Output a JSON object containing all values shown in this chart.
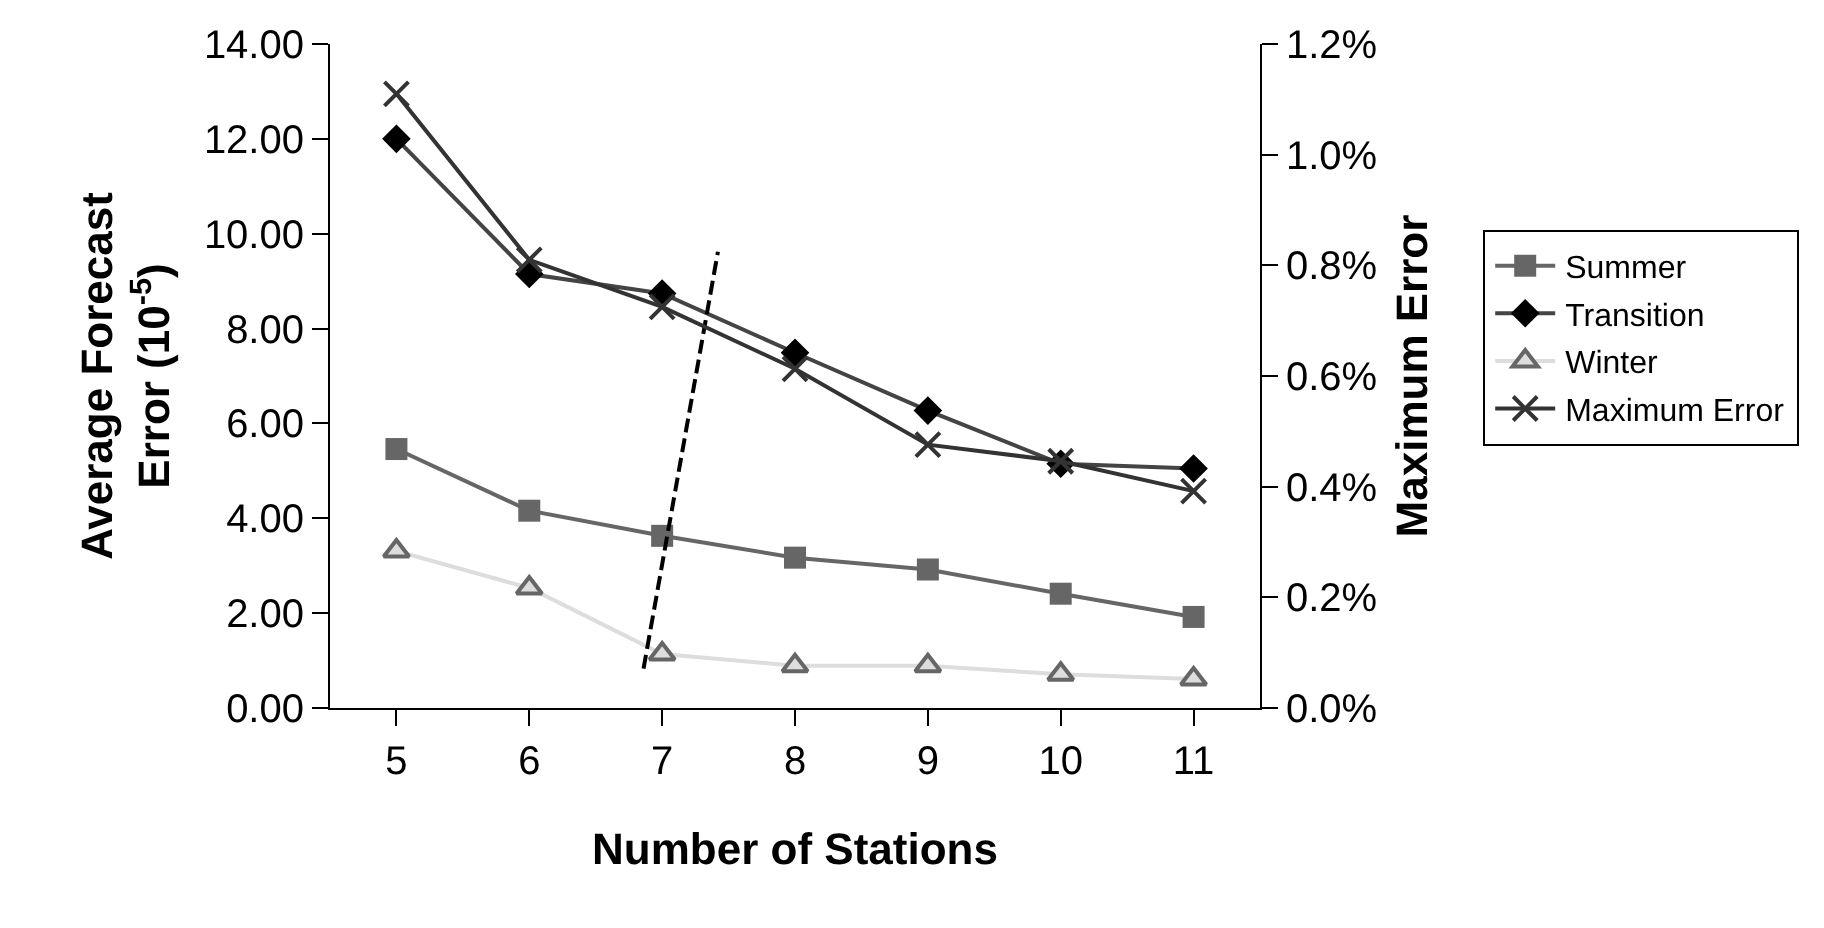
{
  "chart_data": {
    "type": "line",
    "xlabel": "Number of Stations",
    "ylabel": "Average Forecast\nError (10$^{-5}$)",
    "y2label": "Maximum Error",
    "x": [
      5,
      6,
      7,
      8,
      9,
      10,
      11
    ],
    "xlim": [
      4.5,
      11.5
    ],
    "xticks": [
      5,
      6,
      7,
      8,
      9,
      10,
      11
    ],
    "ylim": [
      0,
      14
    ],
    "yticks": [
      {
        "value": 0,
        "label": "0.00"
      },
      {
        "value": 2,
        "label": "2.00"
      },
      {
        "value": 4,
        "label": "4.00"
      },
      {
        "value": 6,
        "label": "6.00"
      },
      {
        "value": 8,
        "label": "8.00"
      },
      {
        "value": 10,
        "label": "10.00"
      },
      {
        "value": 12,
        "label": "12.00"
      },
      {
        "value": 14,
        "label": "14.00"
      }
    ],
    "y2lim": [
      0,
      1.2
    ],
    "y2ticks": [
      {
        "value": 0,
        "label": "0.0%"
      },
      {
        "value": 0.2,
        "label": "0.2%"
      },
      {
        "value": 0.4,
        "label": "0.4%"
      },
      {
        "value": 0.6,
        "label": "0.6%"
      },
      {
        "value": 0.8,
        "label": "0.8%"
      },
      {
        "value": 1.0,
        "label": "1.0%"
      },
      {
        "value": 1.2,
        "label": "1.2%"
      }
    ],
    "legend": "right",
    "series": [
      {
        "name": "Summer",
        "color": "#666666",
        "marker": "square",
        "values": [
          5.46,
          4.16,
          3.63,
          3.17,
          2.92,
          2.41,
          1.92
        ]
      },
      {
        "name": "Transition",
        "color": "#444444",
        "marker": "diamond",
        "values": [
          12.0,
          9.15,
          8.74,
          7.49,
          6.27,
          5.15,
          5.05
        ]
      },
      {
        "name": "Winter",
        "color": "#dddddd",
        "marker": "triangle",
        "values": [
          3.31,
          2.53,
          1.14,
          0.89,
          0.89,
          0.71,
          0.61
        ]
      },
      {
        "name": "Maximum Error",
        "color": "#333333",
        "marker": "cross",
        "axis": "y2",
        "values": [
          1.11,
          0.81,
          0.725,
          0.613,
          0.476,
          0.446,
          0.392
        ]
      },
      {
        "color": "#000000",
        "marker": "none",
        "line_style": "dashed",
        "x": [
          6.86,
          7.42
        ],
        "values": [
          0.83,
          9.62
        ]
      }
    ]
  }
}
